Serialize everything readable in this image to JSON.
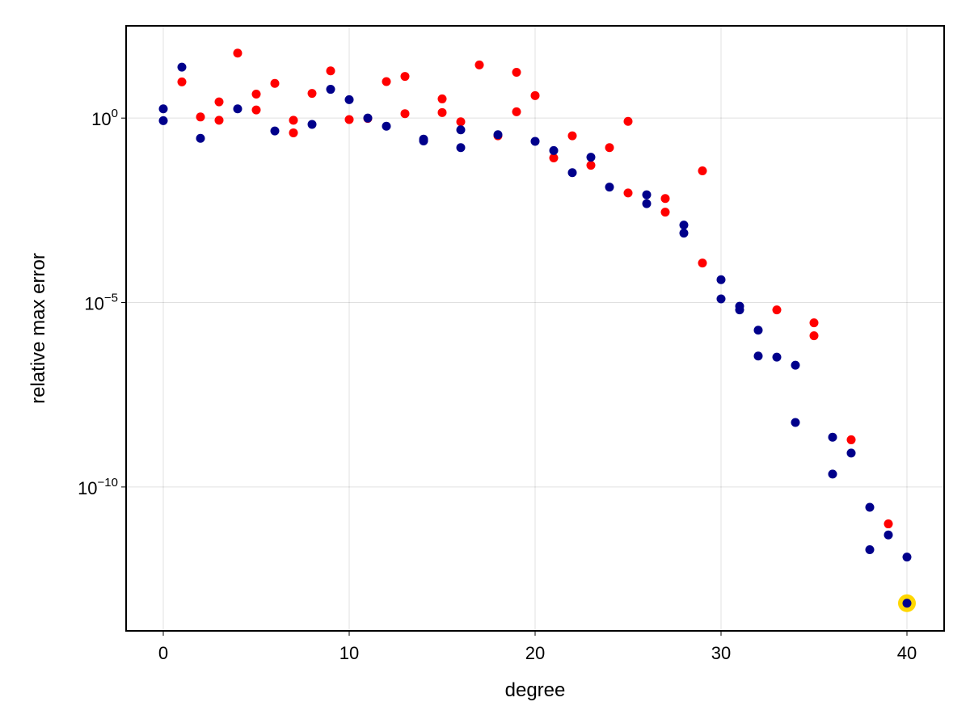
{
  "chart_data": {
    "type": "scatter",
    "title": "",
    "xlabel": "degree",
    "ylabel": "relative max error",
    "xlim": [
      -2,
      42
    ],
    "ylim_log10": [
      -13.9,
      2.5
    ],
    "y_scale": "log10",
    "grid": true,
    "x_ticks": [
      0,
      10,
      20,
      30,
      40
    ],
    "x_tick_labels": [
      "0",
      "10",
      "20",
      "30",
      "40"
    ],
    "y_ticks_log10": [
      0,
      -5,
      -10
    ],
    "y_tick_labels": [
      {
        "base": "10",
        "exp": "0"
      },
      {
        "base": "10",
        "exp": "−5"
      },
      {
        "base": "10",
        "exp": "−10"
      }
    ],
    "colors": {
      "red_series": "#ff0000",
      "blue_series": "#00008b",
      "highlight": "#ffd700"
    },
    "series": [
      {
        "color": "#00008b",
        "x": [
          0,
          0,
          1,
          2,
          4,
          6,
          8,
          9,
          10,
          11,
          12,
          14,
          14,
          16,
          16,
          18,
          20,
          21,
          22,
          23,
          24,
          26,
          26,
          28,
          28,
          30,
          30,
          31,
          31,
          32,
          32,
          33,
          34,
          34,
          36,
          36,
          37,
          38,
          38,
          39,
          40,
          40
        ],
        "log10": [
          0.25,
          -0.07,
          1.38,
          -0.55,
          0.25,
          -0.35,
          -0.17,
          0.78,
          0.5,
          0.0,
          -0.22,
          -0.57,
          -0.62,
          -0.32,
          -0.8,
          -0.45,
          -0.63,
          -0.88,
          -1.48,
          -1.06,
          -1.87,
          -2.08,
          -2.32,
          -2.9,
          -3.12,
          -4.38,
          -4.9,
          -5.1,
          -5.2,
          -5.75,
          -6.45,
          -6.48,
          -6.7,
          -8.25,
          -8.65,
          -9.65,
          -9.08,
          -10.55,
          -11.7,
          -11.3,
          -11.9,
          -13.15
        ]
      },
      {
        "color": "#ff0000",
        "x": [
          1,
          2,
          3,
          3,
          4,
          5,
          5,
          6,
          7,
          7,
          8,
          9,
          10,
          11,
          12,
          13,
          13,
          15,
          15,
          16,
          17,
          18,
          19,
          19,
          20,
          21,
          22,
          23,
          24,
          25,
          25,
          27,
          27,
          29,
          29,
          33,
          35,
          35,
          37,
          39
        ],
        "log10": [
          0.98,
          0.03,
          0.44,
          -0.06,
          1.76,
          0.65,
          0.22,
          0.94,
          -0.06,
          -0.4,
          0.67,
          1.28,
          -0.04,
          -0.01,
          0.99,
          1.13,
          0.12,
          0.52,
          0.15,
          -0.1,
          1.44,
          -0.48,
          1.24,
          0.17,
          0.61,
          -1.08,
          -0.48,
          -1.28,
          -0.8,
          -2.03,
          -0.09,
          -2.18,
          -2.55,
          -1.43,
          -3.93,
          -5.2,
          -5.55,
          -5.9,
          -8.72,
          -11.0
        ]
      }
    ],
    "highlight_point": {
      "x": 40,
      "log10": -13.15
    }
  }
}
